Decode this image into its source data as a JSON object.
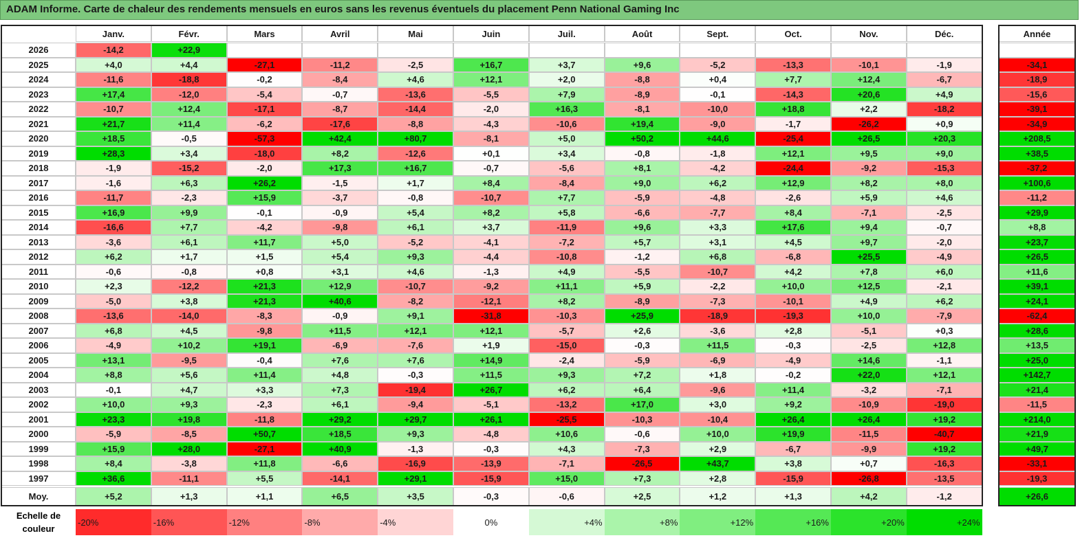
{
  "title": "ADAM Informe. Carte de chaleur des rendements mensuels en euros sans les revenus éventuels du placement Penn National Gaming Inc",
  "chart_data": {
    "type": "heatmap",
    "columns": [
      "Janv.",
      "Févr.",
      "Mars",
      "Avril",
      "Mai",
      "Juin",
      "Juil.",
      "Août",
      "Sept.",
      "Oct.",
      "Nov.",
      "Déc."
    ],
    "year_header": "Année",
    "rows": [
      {
        "label": "2026",
        "values": [
          "-14,2",
          "+22,9",
          "",
          "",
          "",
          "",
          "",
          "",
          "",
          "",
          "",
          ""
        ],
        "year": ""
      },
      {
        "label": "2025",
        "values": [
          "+4,0",
          "+4,4",
          "-27,1",
          "-11,2",
          "-2,5",
          "+16,7",
          "+3,7",
          "+9,6",
          "-5,2",
          "-13,3",
          "-10,1",
          "-1,9"
        ],
        "year": "-34,1"
      },
      {
        "label": "2024",
        "values": [
          "-11,6",
          "-18,8",
          "-0,2",
          "-8,4",
          "+4,6",
          "+12,1",
          "+2,0",
          "-8,8",
          "+0,4",
          "+7,7",
          "+12,4",
          "-6,7"
        ],
        "year": "-18,9"
      },
      {
        "label": "2023",
        "values": [
          "+17,4",
          "-12,0",
          "-5,4",
          "-0,7",
          "-13,6",
          "-5,5",
          "+7,9",
          "-8,9",
          "-0,1",
          "-14,3",
          "+20,6",
          "+4,9"
        ],
        "year": "-15,6"
      },
      {
        "label": "2022",
        "values": [
          "-10,7",
          "+12,4",
          "-17,1",
          "-8,7",
          "-14,4",
          "-2,0",
          "+16,3",
          "-8,1",
          "-10,0",
          "+18,8",
          "+2,2",
          "-18,2"
        ],
        "year": "-39,1"
      },
      {
        "label": "2021",
        "values": [
          "+21,7",
          "+11,4",
          "-6,2",
          "-17,6",
          "-8,8",
          "-4,3",
          "-10,6",
          "+19,4",
          "-9,0",
          "-1,7",
          "-26,2",
          "+0,9"
        ],
        "year": "-34,9"
      },
      {
        "label": "2020",
        "values": [
          "+18,5",
          "-0,5",
          "-57,3",
          "+42,4",
          "+80,7",
          "-8,1",
          "+5,0",
          "+50,2",
          "+44,6",
          "-25,4",
          "+26,5",
          "+20,3"
        ],
        "year": "+208,5"
      },
      {
        "label": "2019",
        "values": [
          "+28,3",
          "+3,4",
          "-18,0",
          "+8,2",
          "-12,6",
          "+0,1",
          "+3,4",
          "-0,8",
          "-1,8",
          "+12,1",
          "+9,5",
          "+9,0"
        ],
        "year": "+38,5"
      },
      {
        "label": "2018",
        "values": [
          "-1,9",
          "-15,2",
          "-2,0",
          "+17,3",
          "+16,7",
          "-0,7",
          "-5,6",
          "+8,1",
          "-4,2",
          "-24,4",
          "-9,2",
          "-15,3"
        ],
        "year": "-37,2"
      },
      {
        "label": "2017",
        "values": [
          "-1,6",
          "+6,3",
          "+26,2",
          "-1,5",
          "+1,7",
          "+8,4",
          "-8,4",
          "+9,0",
          "+6,2",
          "+12,9",
          "+8,2",
          "+8,0"
        ],
        "year": "+100,6"
      },
      {
        "label": "2016",
        "values": [
          "-11,7",
          "-2,3",
          "+15,9",
          "-3,7",
          "-0,8",
          "-10,7",
          "+7,7",
          "-5,9",
          "-4,8",
          "-2,6",
          "+5,9",
          "+4,6"
        ],
        "year": "-11,2"
      },
      {
        "label": "2015",
        "values": [
          "+16,9",
          "+9,9",
          "-0,1",
          "-0,9",
          "+5,4",
          "+8,2",
          "+5,8",
          "-6,6",
          "-7,7",
          "+8,4",
          "-7,1",
          "-2,5"
        ],
        "year": "+29,9"
      },
      {
        "label": "2014",
        "values": [
          "-16,6",
          "+7,7",
          "-4,2",
          "-9,8",
          "+6,1",
          "+3,7",
          "-11,9",
          "+9,6",
          "+3,3",
          "+17,6",
          "+9,4",
          "-0,7"
        ],
        "year": "+8,8"
      },
      {
        "label": "2013",
        "values": [
          "-3,6",
          "+6,1",
          "+11,7",
          "+5,0",
          "-5,2",
          "-4,1",
          "-7,2",
          "+5,7",
          "+3,1",
          "+4,5",
          "+9,7",
          "-2,0"
        ],
        "year": "+23,7"
      },
      {
        "label": "2012",
        "values": [
          "+6,2",
          "+1,7",
          "+1,5",
          "+5,4",
          "+9,3",
          "-4,4",
          "-10,8",
          "-1,2",
          "+6,8",
          "-6,8",
          "+25,5",
          "-4,9"
        ],
        "year": "+26,5"
      },
      {
        "label": "2011",
        "values": [
          "-0,6",
          "-0,8",
          "+0,8",
          "+3,1",
          "+4,6",
          "-1,3",
          "+4,9",
          "-5,5",
          "-10,7",
          "+4,2",
          "+7,8",
          "+6,0"
        ],
        "year": "+11,6"
      },
      {
        "label": "2010",
        "values": [
          "+2,3",
          "-12,2",
          "+21,3",
          "+12,9",
          "-10,7",
          "-9,2",
          "+11,1",
          "+5,9",
          "-2,2",
          "+10,0",
          "+12,5",
          "-2,1"
        ],
        "year": "+39,1"
      },
      {
        "label": "2009",
        "values": [
          "-5,0",
          "+3,8",
          "+21,3",
          "+40,6",
          "-8,2",
          "-12,1",
          "+8,2",
          "-8,9",
          "-7,3",
          "-10,1",
          "+4,9",
          "+6,2"
        ],
        "year": "+24,1"
      },
      {
        "label": "2008",
        "values": [
          "-13,6",
          "-14,0",
          "-8,3",
          "-0,9",
          "+9,1",
          "-31,8",
          "-10,3",
          "+25,9",
          "-18,9",
          "-19,3",
          "+10,0",
          "-7,9"
        ],
        "year": "-62,4"
      },
      {
        "label": "2007",
        "values": [
          "+6,8",
          "+4,5",
          "-9,8",
          "+11,5",
          "+12,1",
          "+12,1",
          "-5,7",
          "+2,6",
          "-3,6",
          "+2,8",
          "-5,1",
          "+0,3"
        ],
        "year": "+28,6"
      },
      {
        "label": "2006",
        "values": [
          "-4,9",
          "+10,2",
          "+19,1",
          "-6,9",
          "-7,6",
          "+1,9",
          "-15,0",
          "-0,3",
          "+11,5",
          "-0,3",
          "-2,5",
          "+12,8"
        ],
        "year": "+13,5"
      },
      {
        "label": "2005",
        "values": [
          "+13,1",
          "-9,5",
          "-0,4",
          "+7,6",
          "+7,6",
          "+14,9",
          "-2,4",
          "-5,9",
          "-6,9",
          "-4,9",
          "+14,6",
          "-1,1"
        ],
        "year": "+25,0"
      },
      {
        "label": "2004",
        "values": [
          "+8,8",
          "+5,6",
          "+11,4",
          "+4,8",
          "-0,3",
          "+11,5",
          "+9,3",
          "+7,2",
          "+1,8",
          "-0,2",
          "+22,0",
          "+12,1"
        ],
        "year": "+142,7"
      },
      {
        "label": "2003",
        "values": [
          "-0,1",
          "+4,7",
          "+3,3",
          "+7,3",
          "-19,4",
          "+26,7",
          "+6,2",
          "+6,4",
          "-9,6",
          "+11,4",
          "-3,2",
          "-7,1"
        ],
        "year": "+21,4"
      },
      {
        "label": "2002",
        "values": [
          "+10,0",
          "+9,3",
          "-2,3",
          "+6,1",
          "-9,4",
          "-5,1",
          "-13,2",
          "+17,0",
          "+3,0",
          "+9,2",
          "-10,9",
          "-19,0"
        ],
        "year": "-11,5"
      },
      {
        "label": "2001",
        "values": [
          "+23,3",
          "+19,8",
          "-11,8",
          "+29,2",
          "+29,7",
          "+26,1",
          "-25,5",
          "-10,3",
          "-10,4",
          "+26,4",
          "+26,4",
          "+19,2"
        ],
        "year": "+214,0"
      },
      {
        "label": "2000",
        "values": [
          "-5,9",
          "-8,5",
          "+50,7",
          "+18,5",
          "+9,3",
          "-4,8",
          "+10,6",
          "-0,6",
          "+10,0",
          "+19,9",
          "-11,5",
          "-40,7"
        ],
        "year": "+21,9"
      },
      {
        "label": "1999",
        "values": [
          "+15,9",
          "+28,0",
          "-27,1",
          "+40,9",
          "-1,3",
          "-0,3",
          "+4,3",
          "-7,3",
          "+2,9",
          "-6,7",
          "-9,9",
          "+19,2"
        ],
        "year": "+49,7"
      },
      {
        "label": "1998",
        "values": [
          "+8,4",
          "-3,8",
          "+11,8",
          "-6,6",
          "-16,9",
          "-13,9",
          "-7,1",
          "-26,5",
          "+43,7",
          "+3,8",
          "+0,7",
          "-16,3"
        ],
        "year": "-33,1"
      },
      {
        "label": "1997",
        "values": [
          "+36,6",
          "-11,1",
          "+5,5",
          "-14,1",
          "+29,1",
          "-15,9",
          "+15,0",
          "+7,3",
          "+2,8",
          "-15,9",
          "-26,8",
          "-13,5"
        ],
        "year": "-19,3"
      }
    ],
    "average": {
      "label": "Moy.",
      "values": [
        "+5,2",
        "+1,3",
        "+1,1",
        "+6,5",
        "+3,5",
        "-0,3",
        "-0,6",
        "+2,5",
        "+1,2",
        "+1,3",
        "+4,2",
        "-1,2"
      ],
      "year": "+26,6"
    },
    "scale": {
      "label_line1": "Echelle de",
      "label_line2": "couleur",
      "items": [
        "-20%",
        "-16%",
        "-12%",
        "-8%",
        "-4%",
        "0%",
        "+4%",
        "+8%",
        "+12%",
        "+16%",
        "+20%",
        "+24%"
      ],
      "item_values": [
        -20,
        -16,
        -12,
        -8,
        -4,
        0,
        4,
        8,
        12,
        16,
        20,
        24
      ]
    },
    "colors": {
      "neg_max": "#ff0000",
      "pos_max": "#00dd00",
      "neutral": "#ffffff"
    }
  }
}
